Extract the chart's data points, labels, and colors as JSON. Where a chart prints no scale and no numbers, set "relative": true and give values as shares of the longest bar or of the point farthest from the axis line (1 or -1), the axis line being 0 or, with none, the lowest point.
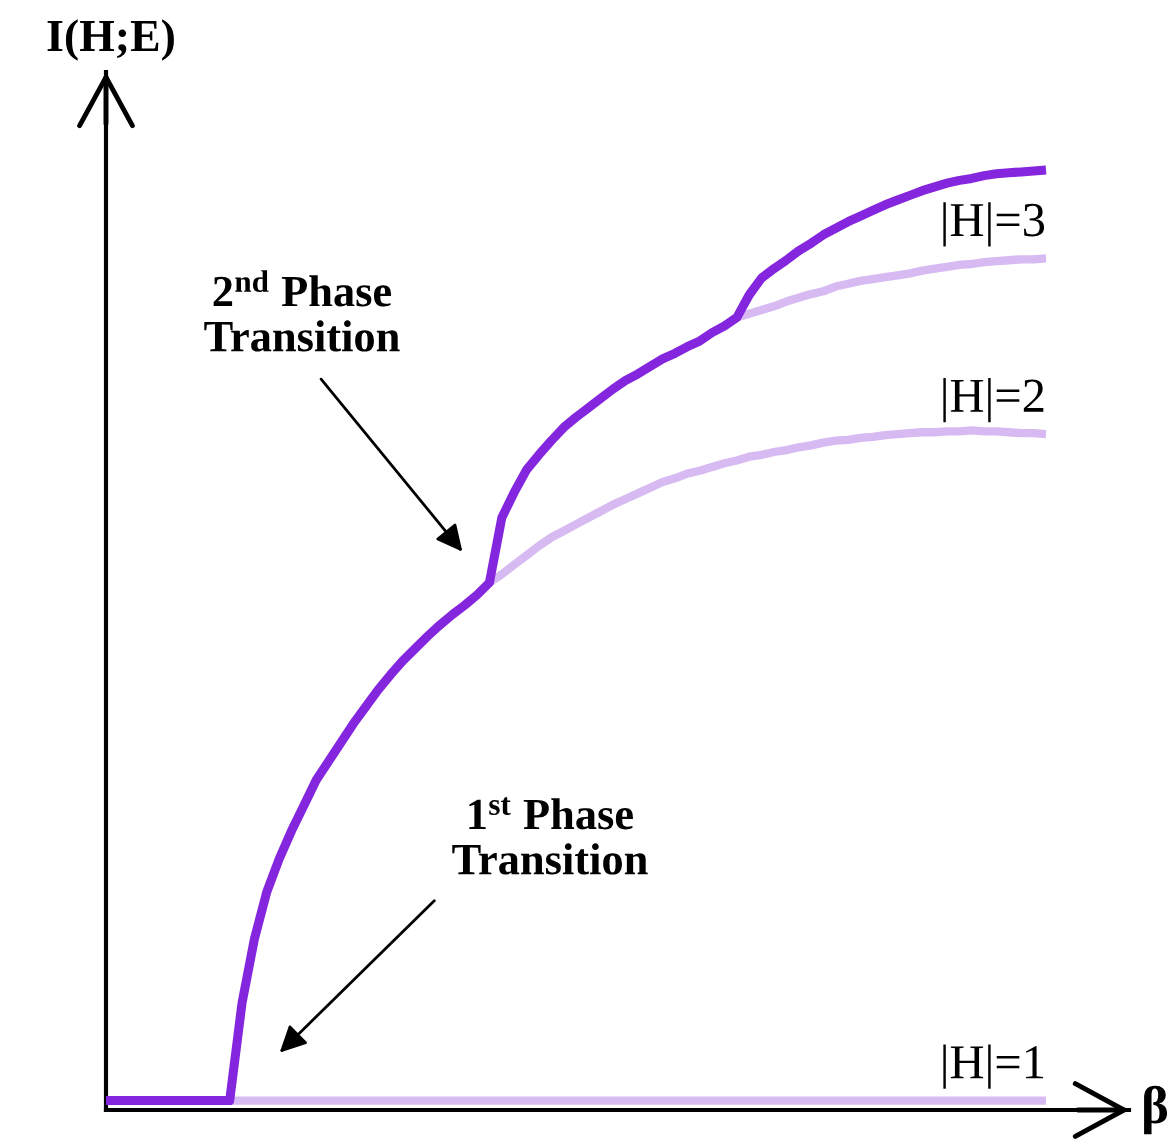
{
  "chart_data": {
    "type": "line",
    "relative": true,
    "xlabel": "β",
    "ylabel": "I(H;E)",
    "categories": [
      null,
      null,
      null,
      null,
      null,
      null,
      null,
      null,
      null,
      null,
      null,
      null,
      null,
      null,
      null,
      null,
      null,
      null,
      null,
      null,
      null,
      null,
      null,
      null,
      null,
      null,
      null,
      null,
      null,
      null,
      null,
      null,
      null,
      null,
      null,
      null,
      null,
      null,
      null,
      null,
      null,
      null,
      null,
      null,
      null,
      null,
      null,
      null,
      null,
      null,
      null,
      null,
      null,
      null,
      null,
      null,
      null,
      null,
      null,
      null,
      null,
      null,
      null,
      null,
      null,
      null,
      null,
      null,
      null,
      null,
      null,
      null,
      null,
      null,
      null,
      null,
      null
    ],
    "series": [
      {
        "name": "|H|=1",
        "color": "#d7baf2",
        "values": [
          null,
          null,
          null,
          null,
          null,
          null,
          null,
          null,
          null,
          null,
          0.01,
          0.01,
          0.01,
          0.01,
          0.01,
          0.01,
          0.01,
          0.01,
          0.01,
          0.01,
          0.01,
          0.01,
          0.01,
          0.01,
          0.01,
          0.01,
          0.01,
          0.01,
          0.01,
          0.01,
          0.01,
          0.01,
          0.01,
          0.01,
          0.01,
          0.01,
          0.01,
          0.01,
          0.01,
          0.01,
          0.01,
          0.01,
          0.01,
          0.01,
          0.01,
          0.01,
          0.01,
          0.01,
          0.01,
          0.01,
          0.01,
          0.01,
          0.01,
          0.01,
          0.01,
          0.01,
          0.01,
          0.01,
          0.01,
          0.01,
          0.01,
          0.01,
          0.01,
          0.01,
          0.01,
          0.01,
          0.01,
          0.01,
          0.01,
          0.01,
          0.01,
          0.01,
          0.01,
          0.01,
          0.01,
          0.01,
          0.01
        ]
      },
      {
        "name": "|H|=2",
        "color": "#d7baf2",
        "values": [
          null,
          null,
          null,
          null,
          null,
          null,
          null,
          null,
          null,
          null,
          null,
          null,
          null,
          null,
          null,
          null,
          null,
          null,
          null,
          null,
          null,
          null,
          null,
          null,
          null,
          null,
          null,
          null,
          null,
          null,
          null,
          0.561,
          0.57,
          0.58,
          0.59,
          0.6,
          0.609,
          0.616,
          0.623,
          0.63,
          0.637,
          0.644,
          0.65,
          0.656,
          0.662,
          0.668,
          0.672,
          0.677,
          0.68,
          0.684,
          0.688,
          0.691,
          0.695,
          0.697,
          0.7,
          0.702,
          0.705,
          0.707,
          0.71,
          0.712,
          0.713,
          0.715,
          0.716,
          0.718,
          0.719,
          0.72,
          0.721,
          0.721,
          0.722,
          0.722,
          0.723,
          0.722,
          0.722,
          0.721,
          0.72,
          0.72,
          0.719
        ]
      },
      {
        "name": "|H|=3",
        "color": "#d7baf2",
        "values": [
          null,
          null,
          null,
          null,
          null,
          null,
          null,
          null,
          null,
          null,
          null,
          null,
          null,
          null,
          null,
          null,
          null,
          null,
          null,
          null,
          null,
          null,
          null,
          null,
          null,
          null,
          null,
          null,
          null,
          null,
          null,
          null,
          null,
          null,
          null,
          null,
          null,
          null,
          null,
          null,
          null,
          null,
          null,
          null,
          null,
          null,
          null,
          null,
          null,
          null,
          null,
          0.843,
          0.847,
          0.851,
          0.855,
          0.86,
          0.864,
          0.868,
          0.871,
          0.876,
          0.879,
          0.882,
          0.884,
          0.886,
          0.888,
          0.89,
          0.893,
          0.895,
          0.897,
          0.899,
          0.9,
          0.902,
          0.903,
          0.904,
          0.905,
          0.905,
          0.906
        ]
      },
      {
        "color": "#8526df",
        "values": [
          0.01,
          0.01,
          0.01,
          0.01,
          0.01,
          0.01,
          0.01,
          0.01,
          0.01,
          0.01,
          0.01,
          0.114,
          0.182,
          0.232,
          0.267,
          0.297,
          0.324,
          0.351,
          0.371,
          0.391,
          0.411,
          0.429,
          0.447,
          0.463,
          0.478,
          0.491,
          0.504,
          0.516,
          0.527,
          0.537,
          0.548,
          0.561,
          0.63,
          0.657,
          0.681,
          0.697,
          0.712,
          0.726,
          0.737,
          0.747,
          0.757,
          0.767,
          0.776,
          0.783,
          0.791,
          0.799,
          0.805,
          0.812,
          0.818,
          0.827,
          0.834,
          0.843,
          0.867,
          0.885,
          0.895,
          0.904,
          0.914,
          0.922,
          0.931,
          0.938,
          0.945,
          0.951,
          0.957,
          0.963,
          0.968,
          0.973,
          0.978,
          0.982,
          0.986,
          0.989,
          0.991,
          0.994,
          0.996,
          0.997,
          0.998,
          0.999,
          1.0
        ]
      }
    ],
    "annotations": [
      "2$^{nd}$ Phase\nTransition",
      "1$^{st}$ Phase\nTransition"
    ]
  }
}
